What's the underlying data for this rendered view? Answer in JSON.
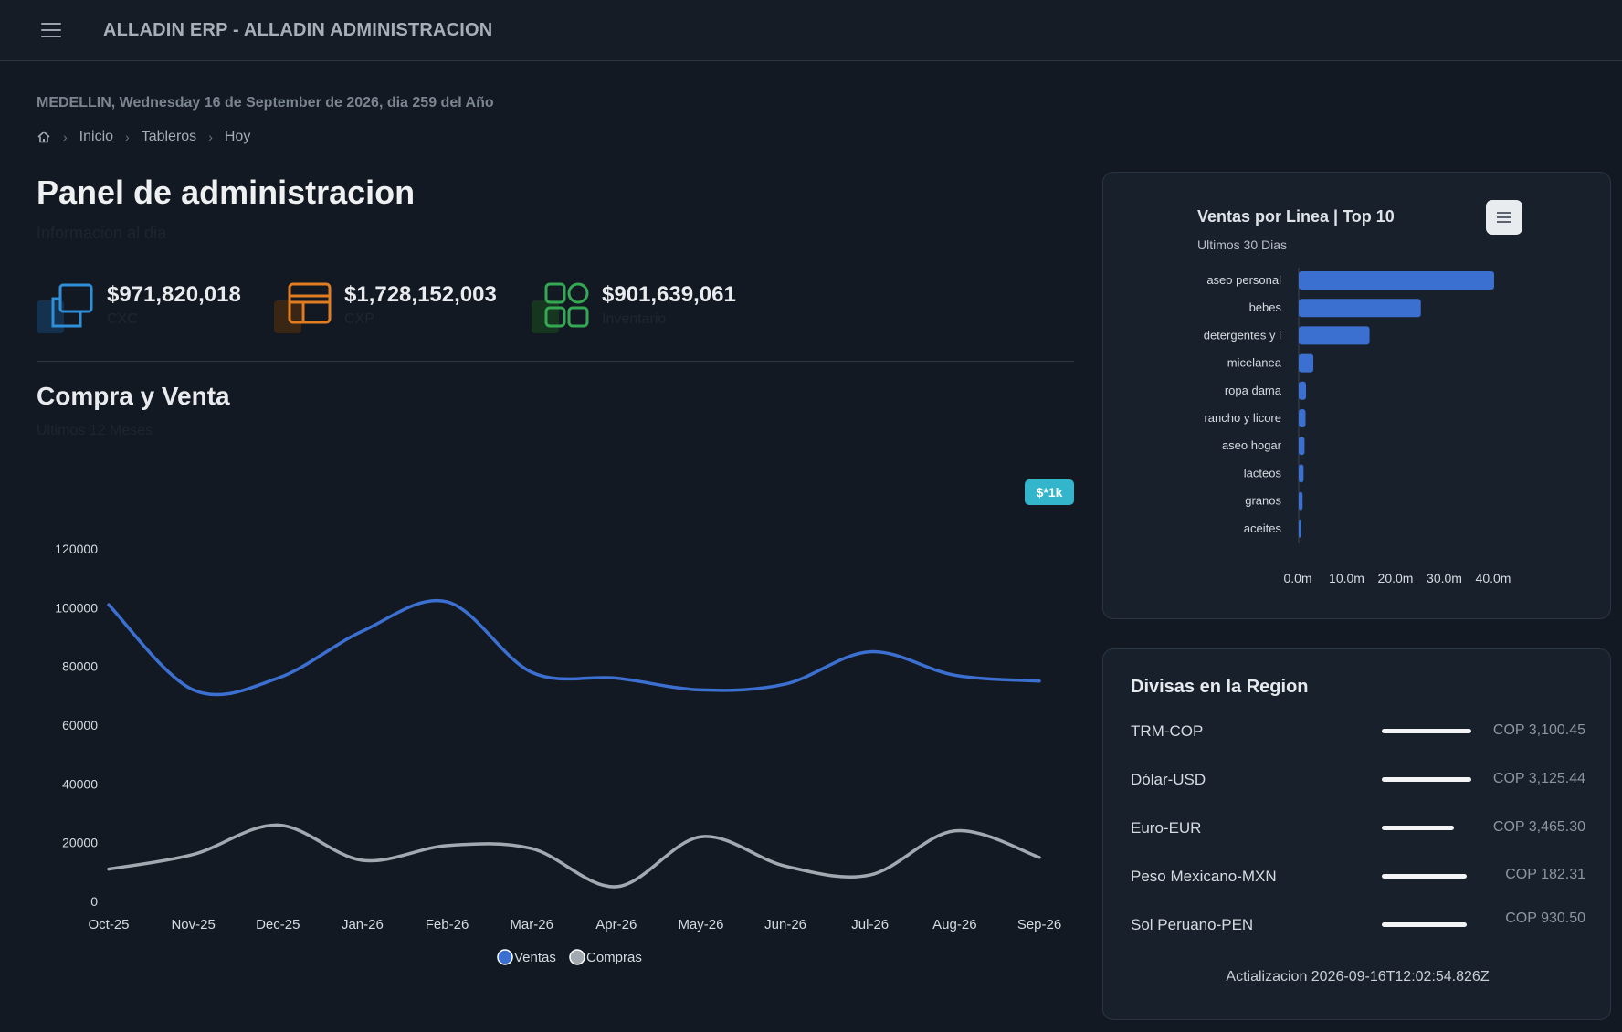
{
  "header": {
    "title": "ALLADIN ERP - ALLADIN ADMINISTRACION",
    "menu_icon": "hamburger-menu-icon"
  },
  "context": {
    "date_line": "MEDELLIN, Wednesday 16 de September de 2026, dia 259 del Año"
  },
  "breadcrumb": {
    "home_icon": "home-icon",
    "items": [
      "Inicio",
      "Tableros",
      "Hoy"
    ]
  },
  "page": {
    "title": "Panel de administracion",
    "subtitle": "Informacion al dia"
  },
  "kpis": [
    {
      "value": "$971,820,018",
      "label": "CXC",
      "icon": "copy-icon",
      "color": "#2f8fd8"
    },
    {
      "value": "$1,728,152,003",
      "label": "CXP",
      "icon": "layout-icon",
      "color": "#e07d20"
    },
    {
      "value": "$901,639,061",
      "label": "Inventario",
      "icon": "grid-icon",
      "color": "#34a853"
    }
  ],
  "purchase_sale": {
    "title": "Compra y Venta",
    "subtitle": "Ultimos 12 Meses",
    "badge": "$*1k",
    "chart_data": {
      "type": "line",
      "categories": [
        "Oct-25",
        "Nov-25",
        "Dec-25",
        "Jan-26",
        "Feb-26",
        "Mar-26",
        "Apr-26",
        "May-26",
        "Jun-26",
        "Jul-26",
        "Aug-26",
        "Sep-26"
      ],
      "ylim": [
        0,
        120000
      ],
      "yticks": [
        0,
        20000,
        40000,
        60000,
        80000,
        100000,
        120000
      ],
      "series": [
        {
          "name": "Ventas",
          "color": "#3b6fd0",
          "values": [
            101000,
            72000,
            76000,
            92000,
            102000,
            78000,
            76000,
            72000,
            74000,
            85000,
            77000,
            75000
          ]
        },
        {
          "name": "Compras",
          "color": "#a3a9b1",
          "values": [
            11000,
            16000,
            26000,
            14000,
            19000,
            18000,
            5000,
            22000,
            12000,
            9000,
            24000,
            15000
          ]
        }
      ],
      "legend": "bottom-center"
    }
  },
  "sales_by_line": {
    "title": "Ventas por Linea | Top 10",
    "subtitle": "Ultimos 30 Dias",
    "menu_icon": "hamburger-menu-icon",
    "chart_data": {
      "type": "bar",
      "orientation": "horizontal",
      "categories": [
        "aseo personal",
        "bebes",
        "detergentes y l",
        "micelanea",
        "ropa dama",
        "rancho y licore",
        "aseo hogar",
        "lacteos",
        "granos",
        "aceites"
      ],
      "values": [
        40,
        25,
        14.5,
        3,
        1.5,
        1.4,
        1.2,
        1,
        0.8,
        0.5
      ],
      "xticks": [
        "0.0m",
        "10.0m",
        "20.0m",
        "30.0m",
        "40.0m"
      ],
      "xlim": [
        0,
        40
      ],
      "color": "#3b6fd0"
    }
  },
  "currencies": {
    "title": "Divisas en la Region",
    "rows": [
      {
        "name": "TRM-COP",
        "value": "COP 3,100.45",
        "level": 1.0
      },
      {
        "name": "Dólar-USD",
        "value": "COP 3,125.44",
        "level": 1.0
      },
      {
        "name": "Euro-EUR",
        "value": "COP 3,465.30",
        "level": 0.8
      },
      {
        "name": "Peso Mexicano-MXN",
        "value": "COP 182.31",
        "level": 0.95
      },
      {
        "name": "Sol Peruano-PEN",
        "value": "COP 930.50",
        "level": 0.95
      }
    ],
    "updated": "Actializacion 2026-09-16T12:02:54.826Z"
  }
}
